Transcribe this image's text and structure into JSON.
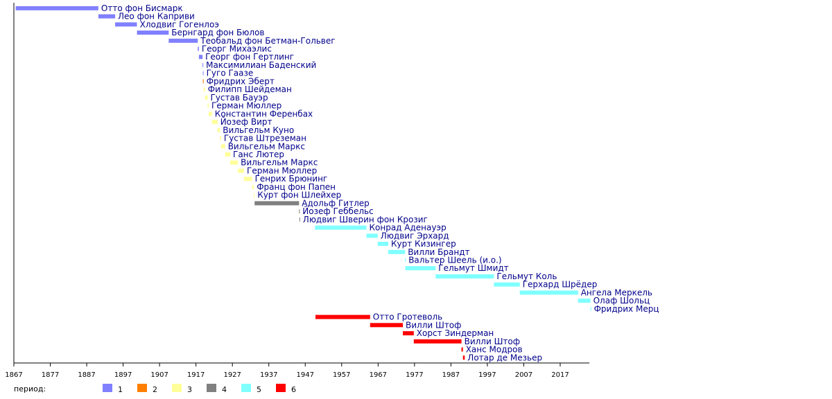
{
  "chart_data": {
    "type": "timeline",
    "xlim": [
      1867,
      2025
    ],
    "x_ticks": [
      1867,
      1877,
      1887,
      1897,
      1907,
      1917,
      1927,
      1937,
      1947,
      1957,
      1967,
      1977,
      1987,
      1997,
      2007,
      2017
    ],
    "legend_title": "период:",
    "legend_position": "bottom-left",
    "periods": [
      {
        "id": 1,
        "label": "1",
        "color": "#8080ff"
      },
      {
        "id": 2,
        "label": "2",
        "color": "#ff8000"
      },
      {
        "id": 3,
        "label": "3",
        "color": "#ffff99"
      },
      {
        "id": 4,
        "label": "4",
        "color": "#808080"
      },
      {
        "id": 5,
        "label": "5",
        "color": "#80ffff"
      },
      {
        "id": 6,
        "label": "6",
        "color": "#ff0000"
      }
    ],
    "rows": [
      {
        "name": "Отто фон Бисмарк",
        "start": 1867.5,
        "end": 1890.2,
        "period": 1
      },
      {
        "name": "Лео фон Каприви",
        "start": 1890.2,
        "end": 1894.8,
        "period": 1
      },
      {
        "name": "Хлодвиг Гогенлоэ",
        "start": 1894.8,
        "end": 1900.8,
        "period": 1
      },
      {
        "name": "Бернгард фон Бюлов",
        "start": 1900.8,
        "end": 1909.5,
        "period": 1
      },
      {
        "name": "Теобальд фон Бетман-Гольвег",
        "start": 1909.5,
        "end": 1917.5,
        "period": 1
      },
      {
        "name": "Георг Михаэлис",
        "start": 1917.5,
        "end": 1917.8,
        "period": 1
      },
      {
        "name": "Георг фон Гертлинг",
        "start": 1917.8,
        "end": 1918.8,
        "period": 1
      },
      {
        "name": "Максимилиан Баденский",
        "start": 1918.8,
        "end": 1918.9,
        "period": 1
      },
      {
        "name": "Гуго Гаазе",
        "start": 1918.9,
        "end": 1919.0,
        "period": 1
      },
      {
        "name": "Фридрих Эберт",
        "start": 1918.9,
        "end": 1919.1,
        "period": 2
      },
      {
        "name": "Филипп Шейдеман",
        "start": 1919.1,
        "end": 1919.5,
        "period": 3
      },
      {
        "name": "Густав Бауэр",
        "start": 1919.5,
        "end": 1920.2,
        "period": 3
      },
      {
        "name": "Герман Мюллер",
        "start": 1920.2,
        "end": 1920.5,
        "period": 3
      },
      {
        "name": "Константин Ференбах",
        "start": 1920.5,
        "end": 1921.4,
        "period": 3
      },
      {
        "name": "Йозеф Вирт",
        "start": 1921.4,
        "end": 1922.9,
        "period": 3
      },
      {
        "name": "Вильгельм Куно",
        "start": 1922.9,
        "end": 1923.6,
        "period": 3
      },
      {
        "name": "Густав Штреземан",
        "start": 1923.6,
        "end": 1923.9,
        "period": 3
      },
      {
        "name": "Вильгельм Маркс",
        "start": 1923.9,
        "end": 1925.0,
        "period": 3
      },
      {
        "name": "Ганс Лютер",
        "start": 1925.0,
        "end": 1926.4,
        "period": 3
      },
      {
        "name": "Вильгельм Маркс",
        "start": 1926.4,
        "end": 1928.5,
        "period": 3
      },
      {
        "name": "Герман Мюллер",
        "start": 1928.5,
        "end": 1930.2,
        "period": 3
      },
      {
        "name": "Генрих Брюнинг",
        "start": 1930.2,
        "end": 1932.4,
        "period": 3
      },
      {
        "name": "Франц фон Папен",
        "start": 1932.4,
        "end": 1932.9,
        "period": 3
      },
      {
        "name": "Курт фон Шлейхер",
        "start": 1932.9,
        "end": 1933.1,
        "period": 3
      },
      {
        "name": "Адольф Гитлер",
        "start": 1933.1,
        "end": 1945.3,
        "period": 4
      },
      {
        "name": "Йозеф Геббельс",
        "start": 1945.3,
        "end": 1945.4,
        "period": 4
      },
      {
        "name": "Людвиг Шверин фон Крозиг",
        "start": 1945.4,
        "end": 1945.5,
        "period": 4
      },
      {
        "name": "Конрад Аденауэр",
        "start": 1949.7,
        "end": 1963.8,
        "period": 5
      },
      {
        "name": "Людвиг Эрхард",
        "start": 1963.8,
        "end": 1966.9,
        "period": 5
      },
      {
        "name": "Курт Кизингер",
        "start": 1966.9,
        "end": 1969.8,
        "period": 5
      },
      {
        "name": "Вилли Брандт",
        "start": 1969.8,
        "end": 1974.4,
        "period": 5
      },
      {
        "name": "Вальтер Шеель (и.о.)",
        "start": 1974.4,
        "end": 1974.5,
        "period": 5
      },
      {
        "name": "Гельмут Шмидт",
        "start": 1974.5,
        "end": 1982.8,
        "period": 5
      },
      {
        "name": "Гельмут Коль",
        "start": 1982.8,
        "end": 1998.8,
        "period": 5
      },
      {
        "name": "Герхард Шрёдер",
        "start": 1998.8,
        "end": 2005.9,
        "period": 5
      },
      {
        "name": "Ангела Меркель",
        "start": 2005.9,
        "end": 2021.9,
        "period": 5
      },
      {
        "name": "Олаф Шольц",
        "start": 2021.9,
        "end": 2025.3,
        "period": 5
      },
      {
        "name": "Фридрих Мерц",
        "start": 2025.3,
        "end": 2025.5,
        "period": 5
      },
      {
        "name": "Отто Гротеволь",
        "start": 1949.8,
        "end": 1964.8,
        "period": 6
      },
      {
        "name": "Вилли Штоф",
        "start": 1964.8,
        "end": 1973.8,
        "period": 6
      },
      {
        "name": "Хорст Зиндерман",
        "start": 1973.8,
        "end": 1976.8,
        "period": 6
      },
      {
        "name": "Вилли Штоф",
        "start": 1976.8,
        "end": 1989.9,
        "period": 6
      },
      {
        "name": "Ханс Модров",
        "start": 1989.9,
        "end": 1990.3,
        "period": 6
      },
      {
        "name": "Лотар де Мезьер",
        "start": 1990.3,
        "end": 1990.8,
        "period": 6
      }
    ]
  }
}
